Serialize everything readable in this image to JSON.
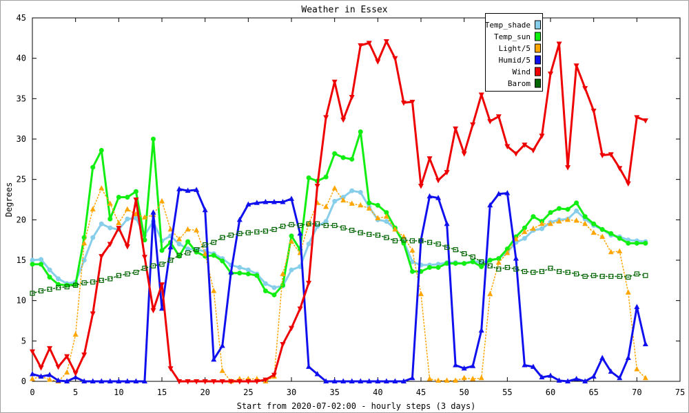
{
  "chart_data": {
    "type": "line",
    "title": "Weather in Essex",
    "xlabel": "Start from 2020-07-02:00 - hourly steps (3 days)",
    "ylabel": "Degrees",
    "xlim": [
      0,
      75
    ],
    "ylim": [
      0,
      45
    ],
    "xticks": [
      0,
      5,
      10,
      15,
      20,
      25,
      30,
      35,
      40,
      45,
      50,
      55,
      60,
      65,
      70,
      75
    ],
    "yticks": [
      0,
      5,
      10,
      15,
      20,
      25,
      30,
      35,
      40,
      45
    ],
    "grid": false,
    "legend": "top-right",
    "x": [
      0,
      1,
      2,
      3,
      4,
      5,
      6,
      7,
      8,
      9,
      10,
      11,
      12,
      13,
      14,
      15,
      16,
      17,
      18,
      19,
      20,
      21,
      22,
      23,
      24,
      25,
      26,
      27,
      28,
      29,
      30,
      31,
      32,
      33,
      34,
      35,
      36,
      37,
      38,
      39,
      40,
      41,
      42,
      43,
      44,
      45,
      46,
      47,
      48,
      49,
      50,
      51,
      52,
      53,
      54,
      55,
      56,
      57,
      58,
      59,
      60,
      61,
      62,
      63,
      64,
      65,
      66,
      67,
      68,
      69,
      70,
      71
    ],
    "series": [
      {
        "name": "Temp_shade",
        "color": "#87ceeb",
        "values": [
          15.0,
          15.1,
          13.8,
          12.7,
          12.1,
          12.3,
          15.0,
          17.8,
          19.5,
          19.0,
          18.8,
          20.1,
          20.2,
          18.1,
          19.8,
          17.4,
          18.0,
          17.0,
          16.4,
          16.3,
          16.1,
          15.8,
          15.2,
          14.4,
          14.1,
          13.8,
          13.3,
          12.1,
          11.6,
          11.8,
          13.8,
          14.2,
          17.0,
          19.2,
          19.8,
          22.3,
          22.8,
          23.6,
          23.4,
          21.6,
          20.0,
          19.8,
          18.9,
          17.3,
          14.8,
          14.4,
          14.4,
          14.5,
          14.7,
          14.7,
          14.6,
          14.9,
          14.7,
          15.0,
          15.2,
          16.0,
          17.2,
          17.7,
          18.7,
          18.9,
          19.7,
          20.0,
          20.1,
          21.1,
          20.1,
          19.3,
          18.8,
          18.1,
          17.9,
          17.5,
          17.4,
          17.3
        ]
      },
      {
        "name": "Temp_sun",
        "color": "#11ee11",
        "values": [
          14.5,
          14.5,
          12.9,
          12.0,
          11.9,
          12.0,
          17.8,
          26.5,
          28.6,
          20.1,
          22.8,
          22.8,
          23.5,
          17.5,
          30.0,
          16.2,
          17.2,
          15.5,
          17.3,
          16.0,
          15.5,
          15.6,
          14.9,
          13.4,
          13.4,
          13.3,
          13.1,
          11.2,
          10.7,
          11.9,
          18.0,
          16.3,
          25.2,
          24.8,
          25.3,
          28.2,
          27.7,
          27.5,
          30.9,
          22.1,
          21.8,
          20.9,
          19.0,
          17.1,
          13.6,
          13.6,
          14.1,
          14.1,
          14.6,
          14.6,
          14.6,
          14.8,
          14.2,
          15.0,
          15.2,
          16.4,
          17.9,
          19.0,
          20.4,
          19.8,
          20.9,
          21.4,
          21.3,
          22.1,
          20.4,
          19.5,
          18.8,
          18.3,
          17.7,
          17.1,
          17.1,
          17.1
        ]
      },
      {
        "name": "Light/5",
        "color": "#ffa500",
        "values": [
          0.3,
          0.6,
          0.2,
          0.0,
          1.1,
          5.8,
          17.1,
          21.3,
          23.9,
          22.0,
          19.6,
          21.3,
          20.7,
          20.3,
          20.6,
          22.3,
          18.8,
          17.6,
          18.8,
          18.7,
          15.8,
          11.2,
          1.3,
          0.0,
          0.3,
          0.3,
          0.3,
          0.0,
          0.6,
          13.3,
          17.3,
          15.9,
          19.5,
          22.1,
          21.6,
          23.9,
          22.4,
          22.0,
          21.8,
          21.4,
          20.2,
          20.4,
          18.8,
          17.9,
          16.2,
          10.8,
          0.3,
          0.1,
          0.1,
          0.1,
          0.4,
          0.3,
          0.4,
          10.8,
          14.7,
          15.9,
          17.6,
          18.5,
          18.9,
          19.5,
          19.5,
          19.8,
          20.0,
          19.9,
          19.5,
          18.4,
          17.9,
          16.0,
          16.1,
          11.0,
          1.5,
          0.4
        ]
      },
      {
        "name": "Humid/5",
        "color": "#1010ee",
        "values": [
          0.9,
          0.6,
          0.8,
          0.1,
          0.0,
          0.5,
          0.0,
          0.0,
          0.0,
          0.0,
          0.0,
          0.0,
          0.0,
          0.0,
          20.9,
          9.0,
          16.6,
          23.8,
          23.6,
          23.7,
          21.2,
          2.7,
          4.4,
          13.5,
          20.0,
          21.9,
          22.1,
          22.2,
          22.2,
          22.2,
          22.6,
          18.3,
          1.8,
          0.9,
          0.0,
          0.0,
          0.0,
          0.0,
          0.0,
          0.0,
          0.0,
          0.0,
          0.0,
          0.0,
          0.4,
          17.5,
          22.9,
          22.7,
          19.5,
          2.0,
          1.6,
          1.9,
          6.3,
          21.8,
          23.2,
          23.3,
          15.2,
          2.0,
          1.8,
          0.5,
          0.7,
          0.1,
          0.0,
          0.3,
          0.0,
          0.6,
          2.9,
          1.2,
          0.4,
          2.9,
          9.2,
          4.6
        ]
      },
      {
        "name": "Wind",
        "color": "#ee0000",
        "values": [
          3.7,
          1.7,
          4.1,
          1.8,
          3.1,
          1.0,
          3.3,
          8.4,
          15.5,
          17.0,
          19.0,
          16.7,
          22.5,
          15.4,
          8.8,
          12.0,
          1.6,
          0.0,
          0.0,
          0.0,
          0.0,
          0.0,
          0.0,
          0.0,
          0.0,
          0.0,
          0.0,
          0.2,
          0.8,
          4.6,
          6.6,
          9.0,
          12.2,
          24.2,
          32.7,
          37.1,
          32.4,
          35.2,
          41.6,
          41.9,
          39.6,
          42.1,
          40.0,
          34.5,
          34.6,
          24.2,
          27.6,
          24.9,
          25.9,
          31.3,
          28.2,
          31.8,
          35.5,
          32.2,
          32.8,
          29.1,
          28.2,
          29.3,
          28.6,
          30.4,
          38.1,
          41.8,
          26.5,
          39.1,
          36.3,
          33.5,
          28.0,
          28.1,
          26.4,
          24.5,
          32.7,
          32.3
        ]
      },
      {
        "name": "Barom",
        "color": "#006400",
        "values": [
          10.9,
          11.2,
          11.4,
          11.6,
          11.7,
          11.9,
          12.2,
          12.3,
          12.5,
          12.7,
          13.1,
          13.3,
          13.5,
          14.0,
          14.3,
          14.5,
          15.0,
          15.6,
          15.9,
          16.3,
          16.9,
          17.2,
          17.8,
          18.1,
          18.3,
          18.4,
          18.5,
          18.6,
          18.8,
          19.2,
          19.4,
          19.3,
          19.5,
          19.5,
          19.3,
          19.3,
          19.0,
          18.7,
          18.4,
          18.2,
          18.1,
          17.8,
          17.4,
          17.5,
          17.4,
          17.4,
          17.2,
          17.0,
          16.6,
          16.3,
          15.8,
          15.4,
          14.8,
          14.3,
          13.9,
          14.1,
          13.9,
          13.6,
          13.5,
          13.6,
          14.0,
          13.6,
          13.5,
          13.3,
          13.0,
          13.1,
          13.0,
          13.0,
          13.0,
          12.9,
          13.3,
          13.1
        ]
      }
    ]
  }
}
